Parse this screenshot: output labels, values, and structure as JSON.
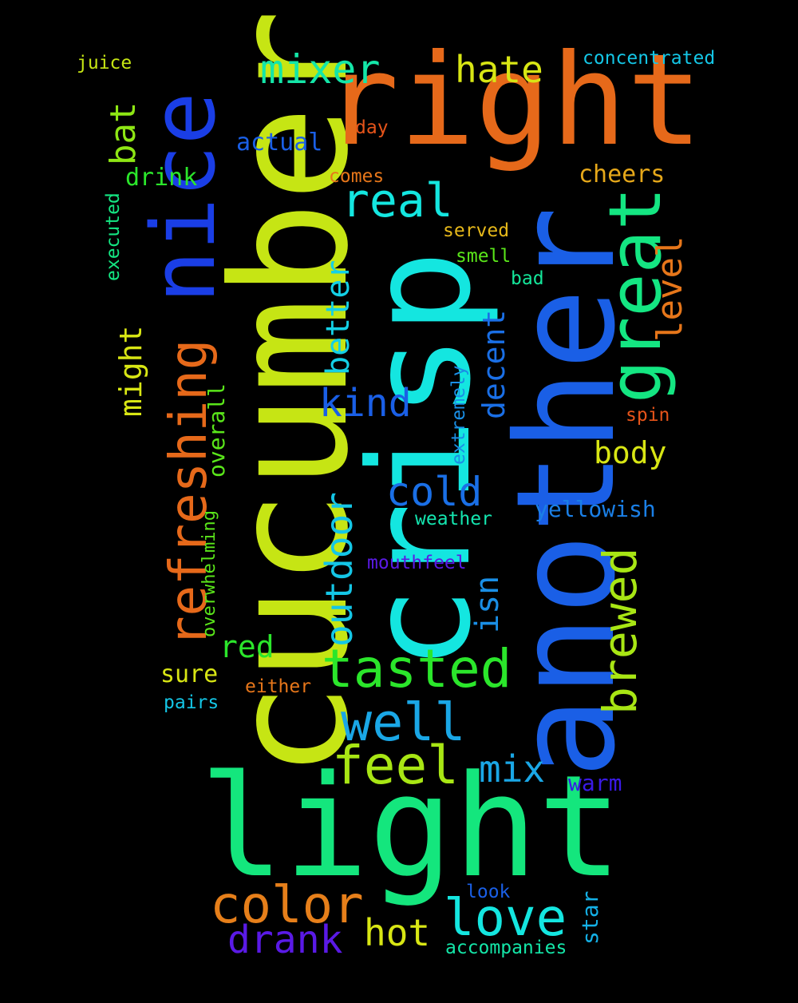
{
  "words": [
    {
      "text": "cucumber",
      "color": "#c6e514"
    },
    {
      "text": "crisp",
      "color": "#14e6e0"
    },
    {
      "text": "another",
      "color": "#1a5fe6"
    },
    {
      "text": "light",
      "color": "#14e67d"
    },
    {
      "text": "right",
      "color": "#e6691a"
    },
    {
      "text": "nice",
      "color": "#1a3ee6"
    },
    {
      "text": "great",
      "color": "#14e682"
    },
    {
      "text": "refreshing",
      "color": "#e6691a"
    },
    {
      "text": "tasted",
      "color": "#2be62b"
    },
    {
      "text": "brewed",
      "color": "#a8e614"
    },
    {
      "text": "color",
      "color": "#e67f1a"
    },
    {
      "text": "love",
      "color": "#14e6e0"
    },
    {
      "text": "well",
      "color": "#1aa7e6"
    },
    {
      "text": "feel",
      "color": "#a8e614"
    },
    {
      "text": "outdoor",
      "color": "#14c6e6"
    },
    {
      "text": "real",
      "color": "#14e6e0"
    },
    {
      "text": "mixer",
      "color": "#14e6a8"
    },
    {
      "text": "hate",
      "color": "#d8e614"
    },
    {
      "text": "kind",
      "color": "#1a5fe6"
    },
    {
      "text": "cold",
      "color": "#1a6fe6"
    },
    {
      "text": "better",
      "color": "#14d0e6"
    },
    {
      "text": "mix",
      "color": "#1aa7e6"
    },
    {
      "text": "hot",
      "color": "#d8e614"
    },
    {
      "text": "drank",
      "color": "#5a1ae6"
    },
    {
      "text": "level",
      "color": "#e6761a"
    },
    {
      "text": "bat",
      "color": "#8ee614"
    },
    {
      "text": "might",
      "color": "#d8e614"
    },
    {
      "text": "decent",
      "color": "#1a6fe6"
    },
    {
      "text": "isn",
      "color": "#1a8fe6"
    },
    {
      "text": "red",
      "color": "#2be62b"
    },
    {
      "text": "body",
      "color": "#d8e614"
    },
    {
      "text": "yellowish",
      "color": "#1a7fe6"
    },
    {
      "text": "overall",
      "color": "#5ae61a"
    },
    {
      "text": "sure",
      "color": "#d8e614"
    },
    {
      "text": "warm",
      "color": "#3a1ae6"
    },
    {
      "text": "star",
      "color": "#14b0e6"
    },
    {
      "text": "actual",
      "color": "#1a5fe6"
    },
    {
      "text": "drink",
      "color": "#2be62b"
    },
    {
      "text": "cheers",
      "color": "#e6a81a"
    },
    {
      "text": "concentrated",
      "color": "#14c6e6"
    },
    {
      "text": "juice",
      "color": "#c6e614"
    },
    {
      "text": "day",
      "color": "#e6541a"
    },
    {
      "text": "comes",
      "color": "#e6761a"
    },
    {
      "text": "served",
      "color": "#e6b81a"
    },
    {
      "text": "smell",
      "color": "#5ae61a"
    },
    {
      "text": "bad",
      "color": "#14e69a"
    },
    {
      "text": "executed",
      "color": "#14e682"
    },
    {
      "text": "extremely",
      "color": "#1a8fe6"
    },
    {
      "text": "spin",
      "color": "#e6541a"
    },
    {
      "text": "overwhelming",
      "color": "#5ae61a"
    },
    {
      "text": "weather",
      "color": "#14e6b0"
    },
    {
      "text": "mouthfeel",
      "color": "#5a1ae6"
    },
    {
      "text": "either",
      "color": "#e6761a"
    },
    {
      "text": "pairs",
      "color": "#14c6e6"
    },
    {
      "text": "look",
      "color": "#1a5fe6"
    },
    {
      "text": "accompanies",
      "color": "#14e6a8"
    }
  ]
}
